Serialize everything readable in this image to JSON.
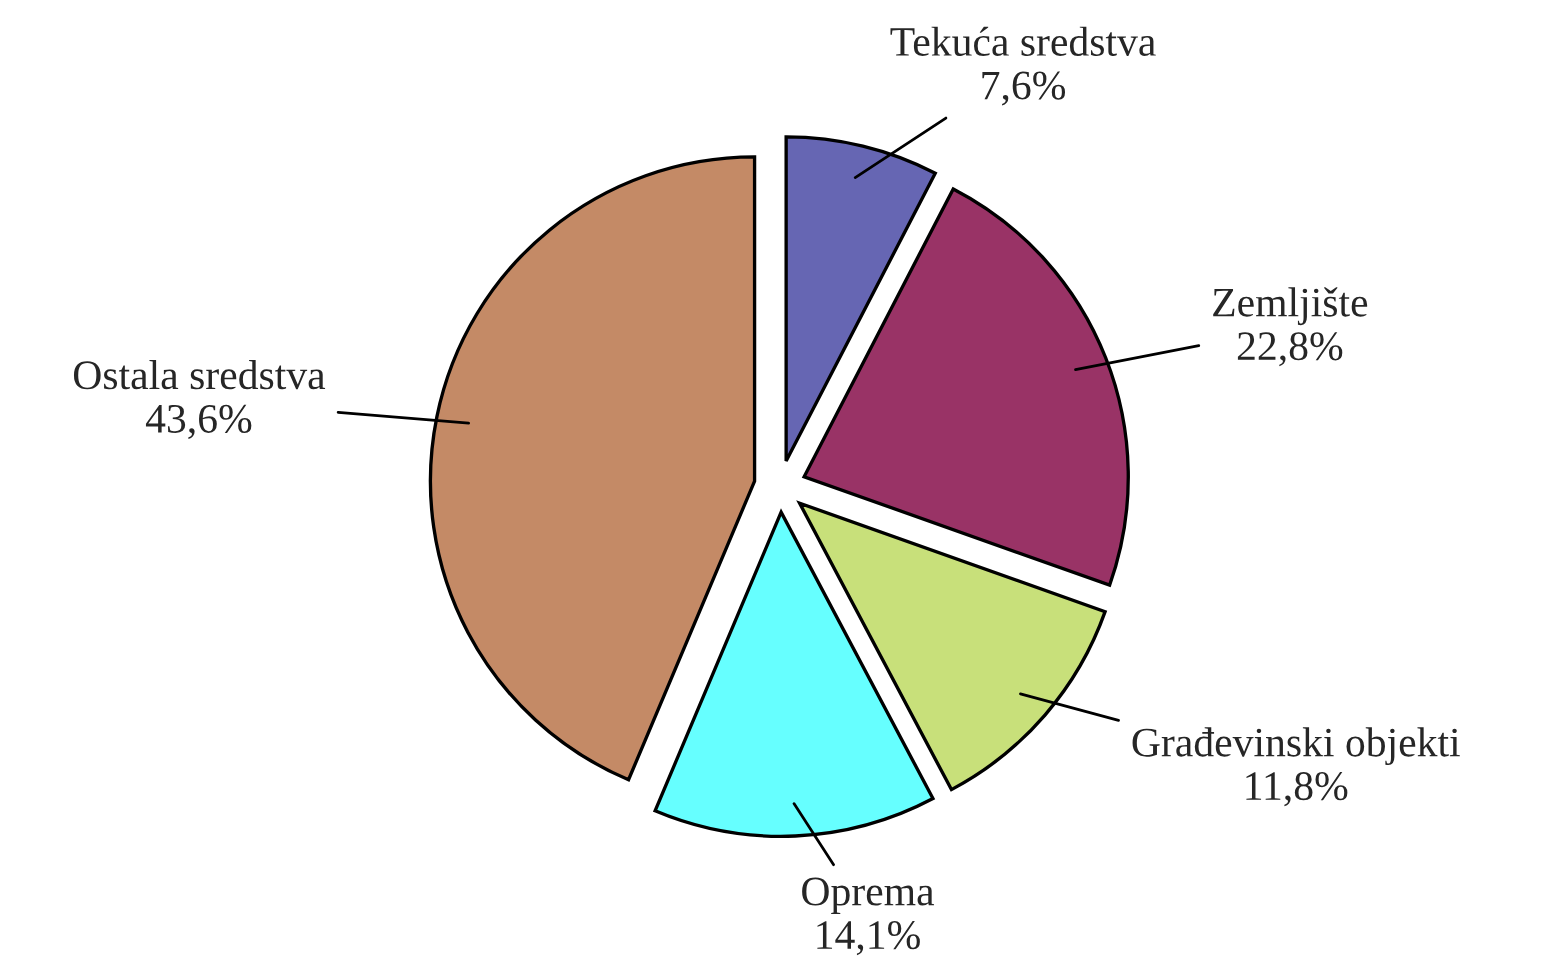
{
  "chart_data": {
    "type": "pie",
    "categories": [
      "Tekuća sredstva",
      "Zemljište",
      "Građevinski objekti",
      "Oprema",
      "Ostala sredstva"
    ],
    "values": [
      7.6,
      22.8,
      11.8,
      14.1,
      43.6
    ],
    "value_labels": [
      "7,6%",
      "22,8%",
      "11,8%",
      "14,1%",
      "43,6%"
    ],
    "colors": [
      "#6666b3",
      "#993366",
      "#c8e07a",
      "#66ffff",
      "#c48a66"
    ]
  }
}
